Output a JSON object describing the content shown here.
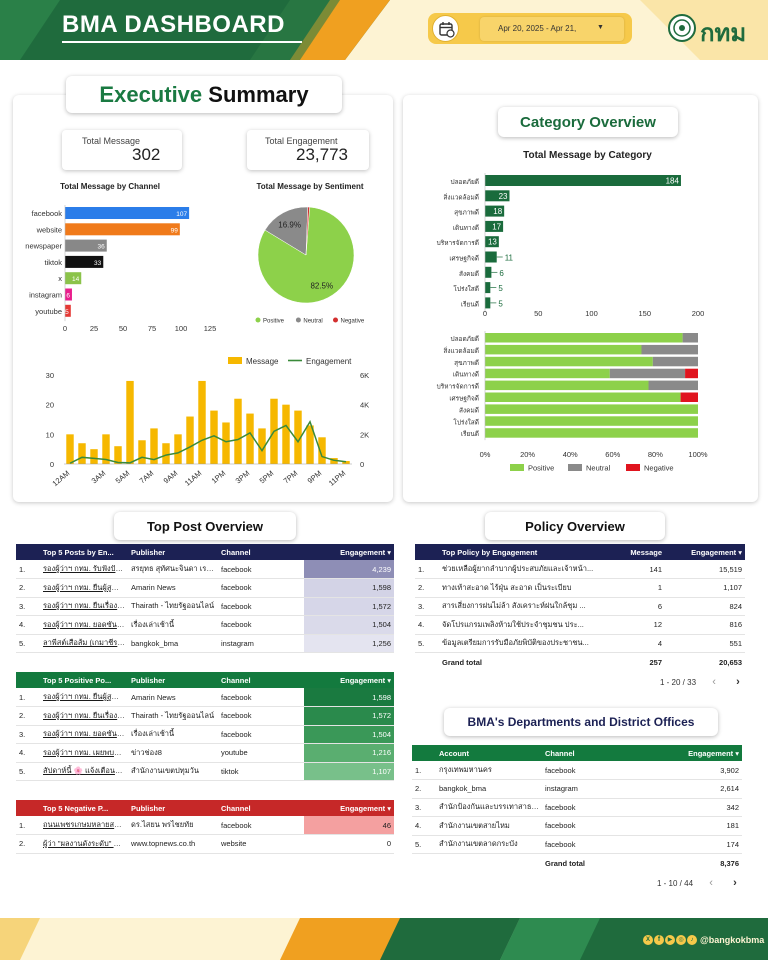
{
  "header": {
    "title": "BMA DASHBOARD",
    "date_range": "Apr 20, 2025 - Apr 21,",
    "logo_text": "กทม",
    "calendar_icon": "calendar-icon",
    "dropdown_icon": "caret-down-icon",
    "colors": {
      "green": "#1a6b3c",
      "orange": "#f0a020",
      "yellow": "#f6c94a",
      "cream": "#fdf3d3"
    }
  },
  "executive": {
    "title_part1": "Executive",
    "title_part2": "Summary",
    "total_message_label": "Total Message",
    "total_message": "302",
    "total_engagement_label": "Total Engagement",
    "total_engagement": "23,773",
    "channel_title": "Total Message by Channel",
    "sentiment_title": "Total Message by Sentiment"
  },
  "channel_chart": {
    "type": "bar",
    "categories": [
      "facebook",
      "website",
      "newspaper",
      "tiktok",
      "x",
      "instagram",
      "youtube"
    ],
    "values": [
      107,
      99,
      36,
      33,
      14,
      6,
      5
    ],
    "colors": [
      "#2b7de9",
      "#f07a1a",
      "#888888",
      "#111111",
      "#8bc34a",
      "#e91e8c",
      "#e53935"
    ],
    "xlim": [
      0,
      125
    ],
    "ticks": [
      "0",
      "25",
      "50",
      "75",
      "100",
      "125"
    ]
  },
  "sentiment_chart": {
    "type": "pie",
    "slices": [
      {
        "name": "Positive",
        "value": 82.5,
        "color": "#8dd14a",
        "label": "82.5%"
      },
      {
        "name": "Neutral",
        "value": 16.9,
        "color": "#8a8a8a",
        "label": "16.9%"
      },
      {
        "name": "Negative",
        "value": 0.6,
        "color": "#d32f2f",
        "label": ""
      }
    ]
  },
  "hourly_chart": {
    "type": "bar+line",
    "legend": [
      "Message",
      "Engagement"
    ],
    "messages": [
      10,
      7,
      5,
      10,
      6,
      28,
      8,
      12,
      7,
      10,
      16,
      28,
      18,
      14,
      22,
      17,
      12,
      22,
      20,
      18,
      13,
      9,
      2,
      1
    ],
    "engagement": [
      50,
      450,
      380,
      300,
      100,
      80,
      450,
      300,
      600,
      750,
      1150,
      1600,
      1900,
      1500,
      1650,
      2100,
      900,
      2200,
      2600,
      1500,
      2850,
      500,
      250,
      150
    ],
    "hour_labels": [
      "12AM",
      "3AM",
      "5AM",
      "7AM",
      "9AM",
      "11AM",
      "1PM",
      "3PM",
      "5PM",
      "7PM",
      "9PM",
      "11PM"
    ],
    "ylim_left": [
      0,
      30
    ],
    "ylim_right": [
      0,
      6000
    ],
    "left_ticks": [
      "0",
      "10",
      "20",
      "30"
    ],
    "right_ticks": [
      "0",
      "2K",
      "4K",
      "6K"
    ]
  },
  "category": {
    "title": "Category Overview",
    "chart_title": "Total Message by Category",
    "categories": [
      "ปลอดภัยดี",
      "สิ่งแวดล้อมดี",
      "สุขภาพดี",
      "เดินทางดี",
      "บริหารจัดการดี",
      "เศรษฐกิจดี",
      "สังคมดี",
      "โปร่งใสดี",
      "เรียนดี"
    ],
    "values": [
      184,
      23,
      18,
      17,
      13,
      11,
      6,
      5,
      5
    ],
    "xlim": [
      0,
      200
    ],
    "ticks": [
      "0",
      "50",
      "100",
      "150",
      "200"
    ],
    "pos": [
      90,
      72,
      78,
      58,
      76,
      90,
      100,
      100,
      100
    ],
    "neu": [
      7,
      26,
      21,
      35,
      23,
      0,
      0,
      0,
      0
    ],
    "neg": [
      0,
      0,
      0,
      6,
      0,
      8,
      0,
      0,
      0
    ],
    "pct_ticks": [
      "0%",
      "20%",
      "40%",
      "60%",
      "80%",
      "100%"
    ],
    "legend": [
      "Positive",
      "Neutral",
      "Negative"
    ]
  },
  "top_posts": {
    "title": "Top Post Overview",
    "top5": {
      "headers": [
        "Top 5 Posts by En...",
        "Publisher",
        "Channel",
        "Engagement ▾"
      ],
      "rows": [
        [
          "1.",
          "รองผู้ว่าฯ กทม. รับฟังปัญ...",
          "สรยุทธ สุทัศนะจินดา เรา...",
          "facebook",
          "4,239"
        ],
        [
          "2.",
          "รองผู้ว่าฯ กทม. ยืนผู้สูญผู้...",
          "Amarin News",
          "facebook",
          "1,598"
        ],
        [
          "3.",
          "รองผู้ว่าฯ กทม. ยืนเรื่องผม...",
          "Thairath - ไทยรัฐออนไลน์",
          "facebook",
          "1,572"
        ],
        [
          "4.",
          "รองผู้ว่าฯ กทม. ยอดซันนิม...",
          "เรื่องเล่าเช้านี้",
          "facebook",
          "1,504"
        ],
        [
          "5.",
          "ลาพีสต์เสือส้ม (เกมาชีระบั...",
          "bangkok_bma",
          "instagram",
          "1,256"
        ]
      ]
    },
    "positive": {
      "headers": [
        "Top 5 Positive Po...",
        "Publisher",
        "Channel",
        "Engagement ▾"
      ],
      "rows": [
        [
          "1.",
          "รองผู้ว่าฯ กทม. ยืนผู้สูญผู้...",
          "Amarin News",
          "facebook",
          "1,598"
        ],
        [
          "2.",
          "รองผู้ว่าฯ กทม. ยืนเรื่องผม...",
          "Thairath - ไทยรัฐออนไลน์",
          "facebook",
          "1,572"
        ],
        [
          "3.",
          "รองผู้ว่าฯ กทม. ยอดซันนิม...",
          "เรื่องเล่าเช้านี้",
          "facebook",
          "1,504"
        ],
        [
          "4.",
          "รองผู้ว่าฯ กทม. เผยพบสิ่ง...",
          "ข่าวช่อง8",
          "youtube",
          "1,216"
        ],
        [
          "5.",
          "สัปดาห์นี้ 🌸 แจ้งเตือนฯ ...",
          "สำนักงานเขตปทุมวัน",
          "tiktok",
          "1,107"
        ]
      ]
    },
    "negative": {
      "headers": [
        "Top 5 Negative P...",
        "Publisher",
        "Channel",
        "Engagement ▾"
      ],
      "rows": [
        [
          "1.",
          "ถนนเพชรเกษมหลายสาย...",
          "ดร.ไสยน พรไชยทัย",
          "facebook",
          "46"
        ],
        [
          "2.",
          "ผู้ว่า \"ผลงานดังระดับ\" โว...",
          "www.topnews.co.th",
          "website",
          "0"
        ]
      ]
    }
  },
  "policy": {
    "title": "Policy Overview",
    "headers": [
      "Top Policy by Engagement",
      "Message",
      "Engagement ▾"
    ],
    "rows": [
      [
        "1.",
        "ช่วยเหลือผู้ยากลำบากผู้ประสบภัยและเจ้าหน้า...",
        "141",
        "15,519"
      ],
      [
        "2.",
        "ทางเท้าสะอาด ไร้ฝุ่น สะอาด เป็นระเบียบ",
        "1",
        "1,107"
      ],
      [
        "3.",
        "สารเสี่ยงการฝนไม่ล้า สังเคราะห์ฝนใกล้ชุม ...",
        "6",
        "824"
      ],
      [
        "4.",
        "จัดโปรแกรมเพลิงห้ามใช้ประจำชุมชน ประ...",
        "12",
        "816"
      ],
      [
        "5.",
        "ข้อมูลเตรียมการรับมือภัยพิบัติของประชาชน...",
        "4",
        "551"
      ]
    ],
    "grand_label": "Grand total",
    "grand_msg": "257",
    "grand_eng": "20,653",
    "pager": "1 - 20 / 33"
  },
  "departments": {
    "title": "BMA's Departments and District Offices",
    "headers": [
      "Account",
      "Channel",
      "Engagement ▾"
    ],
    "rows": [
      [
        "1.",
        "กรุงเทพมหานคร",
        "facebook",
        "3,902"
      ],
      [
        "2.",
        "bangkok_bma",
        "instagram",
        "2,614"
      ],
      [
        "3.",
        "สำนักป้องกันและบรรเทาสาธารณภัย...",
        "facebook",
        "342"
      ],
      [
        "4.",
        "สำนักงานเขตสายไหม",
        "facebook",
        "181"
      ],
      [
        "5.",
        "สำนักงานเขตลาดกระบัง",
        "facebook",
        "174"
      ]
    ],
    "grand_label": "Grand total",
    "grand_eng": "8,376",
    "pager": "1 - 10 / 44"
  },
  "footer": {
    "social_handle": "@bangkokbma",
    "icons": [
      "x-icon",
      "facebook-icon",
      "youtube-icon",
      "instagram-icon",
      "tiktok-icon"
    ]
  }
}
